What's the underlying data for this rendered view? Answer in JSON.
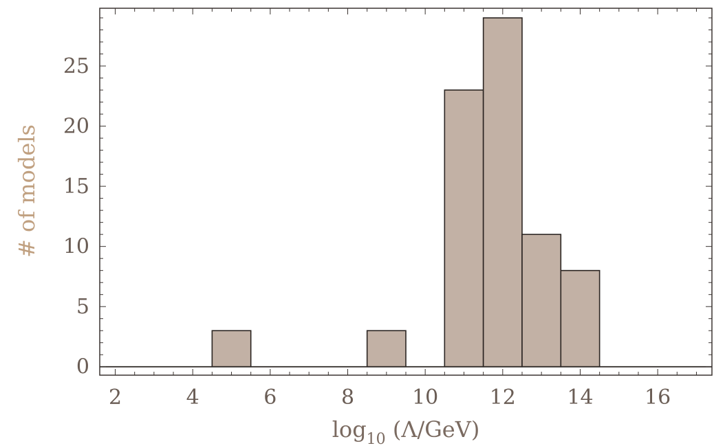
{
  "chart_data": {
    "type": "bar",
    "xlabel": {
      "prefix": "log",
      "sub": "10",
      "suffix": " (Λ/GeV)"
    },
    "ylabel": "# of models",
    "xlim": [
      1.6,
      17.4
    ],
    "ylim": [
      -0.7,
      29.8
    ],
    "xticks": [
      2,
      4,
      6,
      8,
      10,
      12,
      14,
      16
    ],
    "yticks": [
      0,
      5,
      10,
      15,
      20,
      25
    ],
    "bins": [
      {
        "x0": 4.5,
        "x1": 5.5,
        "value": 3
      },
      {
        "x0": 8.5,
        "x1": 9.5,
        "value": 3
      },
      {
        "x0": 10.5,
        "x1": 11.5,
        "value": 23
      },
      {
        "x0": 11.5,
        "x1": 12.5,
        "value": 29
      },
      {
        "x0": 12.5,
        "x1": 13.5,
        "value": 11
      },
      {
        "x0": 13.5,
        "x1": 14.5,
        "value": 8
      }
    ],
    "bar_color": "#c2b1a5",
    "zero_line": true,
    "grid": false,
    "legend": "none"
  }
}
